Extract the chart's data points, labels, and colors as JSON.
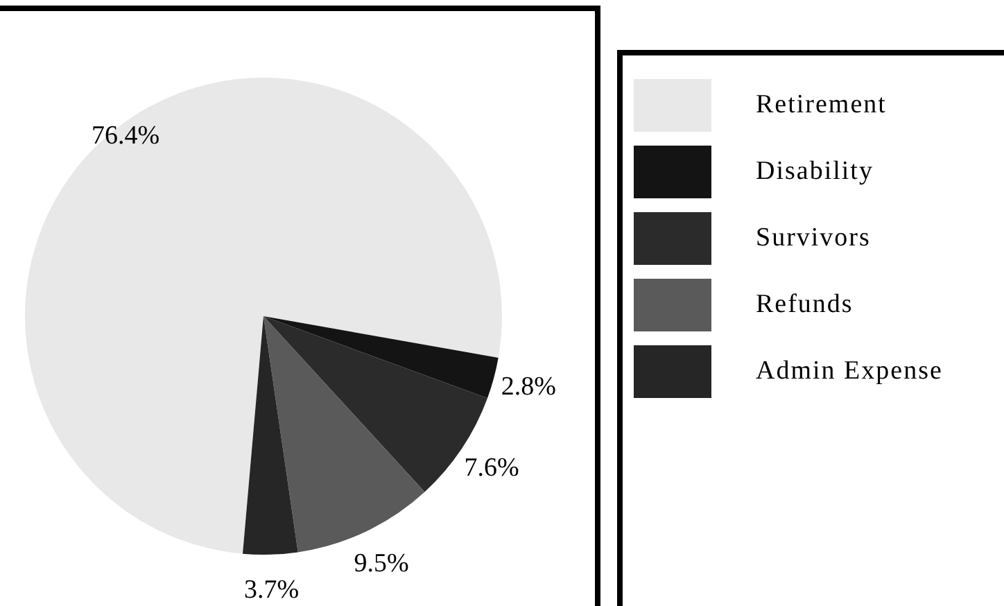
{
  "chart_data": {
    "type": "pie",
    "categories": [
      "Retirement",
      "Disability",
      "Survivors",
      "Refunds",
      "Admin Expense"
    ],
    "values": [
      76.4,
      2.8,
      7.6,
      9.5,
      3.7
    ],
    "colors": [
      "#e8e8e8",
      "#141414",
      "#2b2b2b",
      "#5a5a5a",
      "#262626"
    ],
    "legend": "right",
    "value_labels": [
      "76.4%",
      "2.8%",
      "7.6%",
      "9.5%",
      "3.7%"
    ]
  }
}
